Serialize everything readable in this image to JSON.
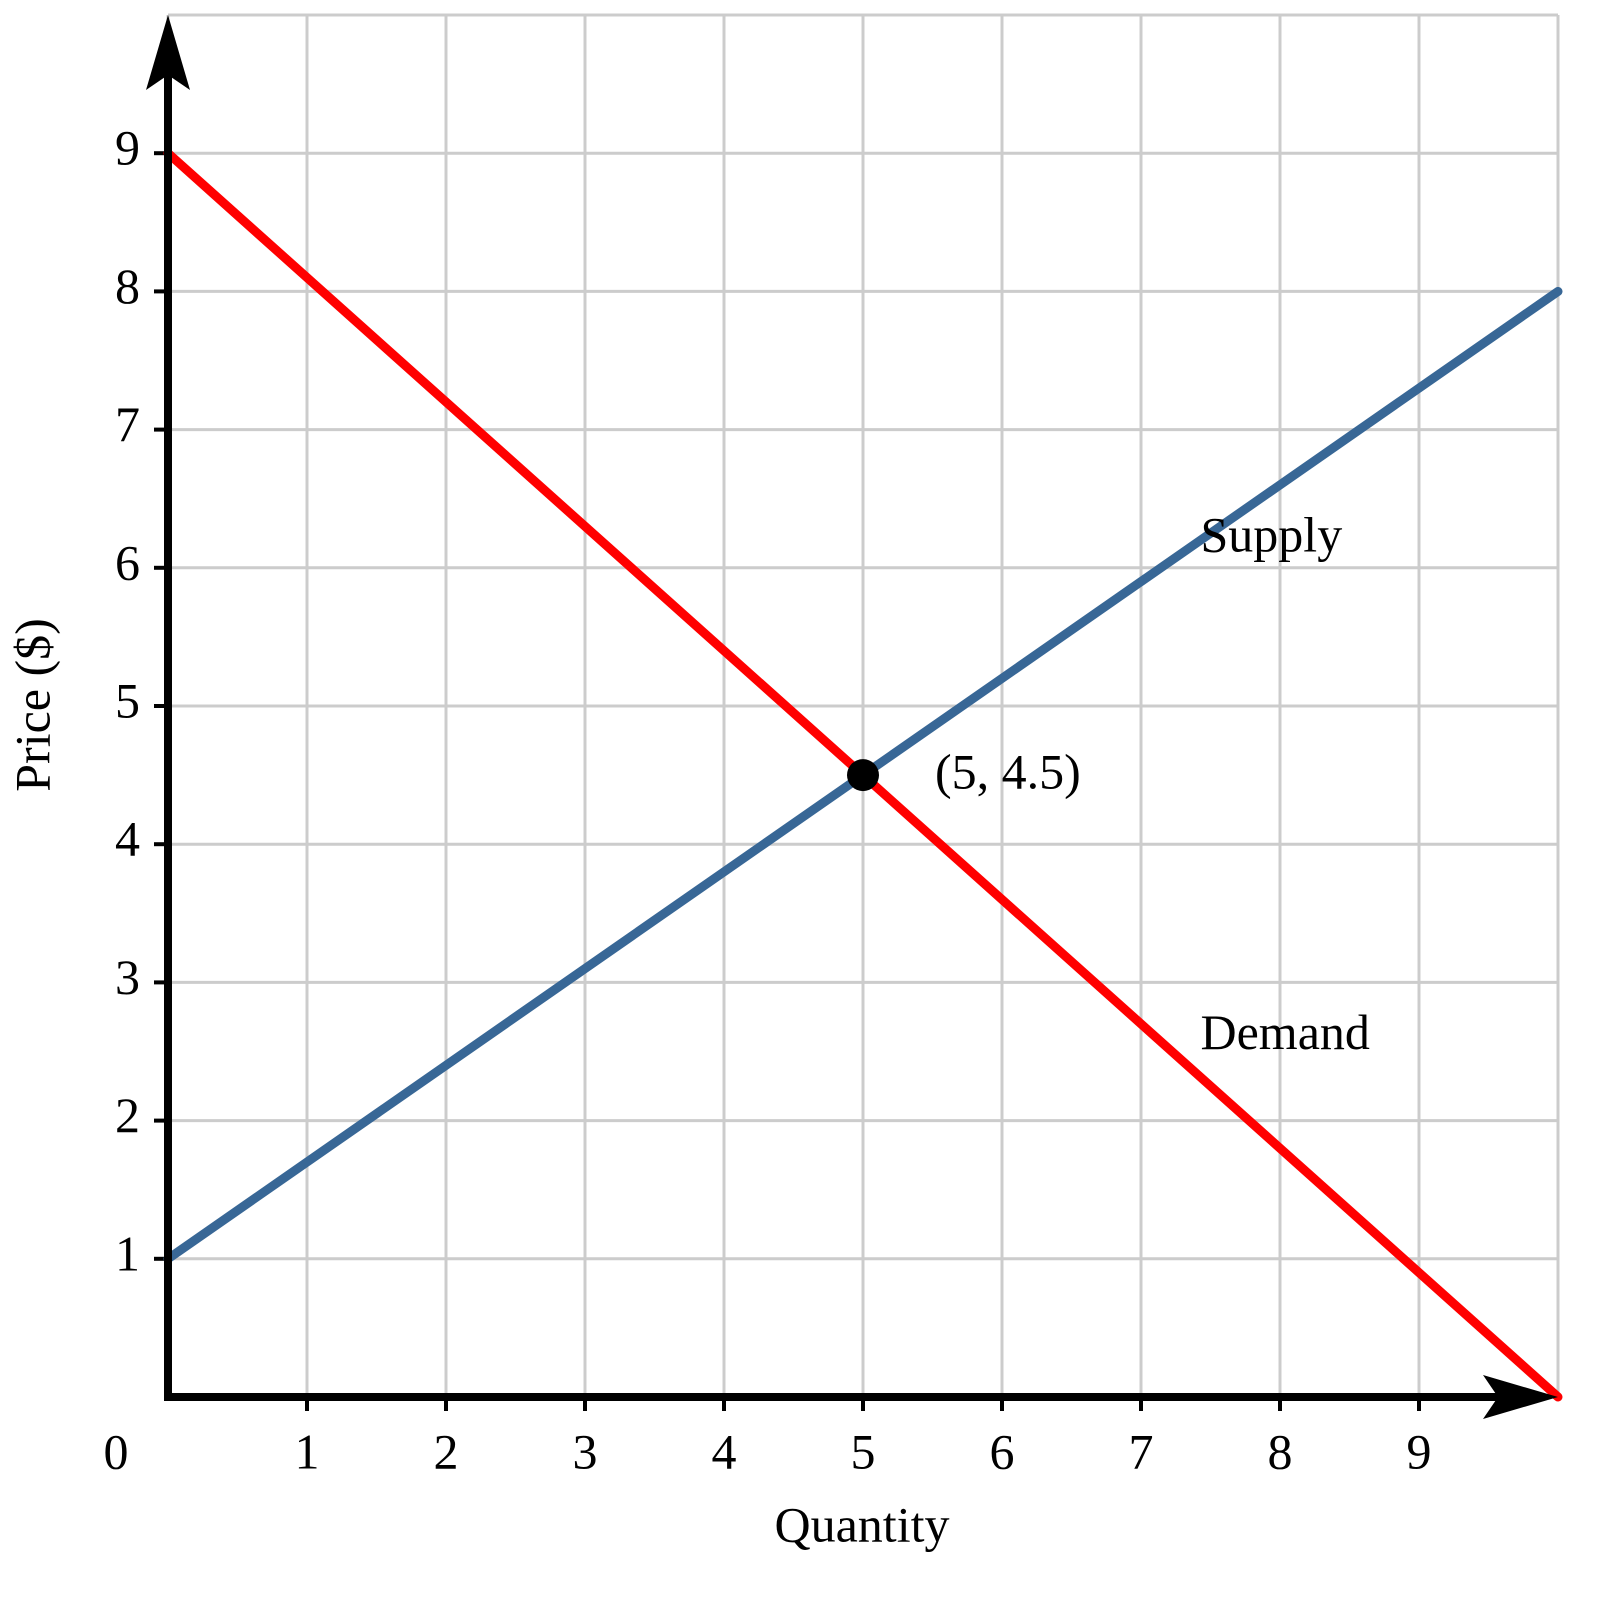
{
  "chart_data": {
    "type": "line",
    "xlabel": "Quantity",
    "ylabel": "Price ($)",
    "xlim": [
      0,
      10
    ],
    "ylim": [
      0,
      10
    ],
    "xticks": [
      0,
      1,
      2,
      3,
      4,
      5,
      6,
      7,
      8,
      9
    ],
    "yticks": [
      1,
      2,
      3,
      4,
      5,
      6,
      7,
      8,
      9
    ],
    "grid": true,
    "series": [
      {
        "name": "Supply",
        "color": "#386796",
        "x": [
          0,
          10
        ],
        "values": [
          1,
          8
        ]
      },
      {
        "name": "Demand",
        "color": "#ff0000",
        "x": [
          0,
          10
        ],
        "values": [
          9,
          0
        ]
      }
    ],
    "points": [
      {
        "x": 5,
        "y": 4.5,
        "label": "(5, 4.5)",
        "color": "#000000"
      }
    ]
  }
}
